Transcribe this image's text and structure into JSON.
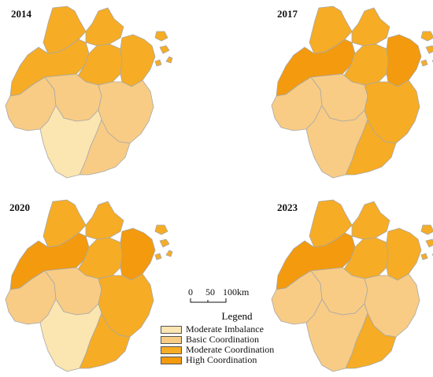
{
  "colors": {
    "moderate_imbalance": "#fbe5b0",
    "basic_coordination": "#f8cc85",
    "moderate_coordination": "#f6ac24",
    "high_coordination": "#f39a0e",
    "border": "#a8a8a8"
  },
  "panels": [
    {
      "year": "2014",
      "regions": {
        "huzhou": "moderate_coordination",
        "jiaxing": "moderate_coordination",
        "hangzhou": "moderate_coordination",
        "shaoxing": "moderate_coordination",
        "ningbo": "moderate_coordination",
        "zhoushan": "moderate_coordination",
        "quzhou": "basic_coordination",
        "jinhua": "basic_coordination",
        "taizhou": "basic_coordination",
        "lishui": "moderate_imbalance",
        "wenzhou": "basic_coordination"
      }
    },
    {
      "year": "2017",
      "regions": {
        "huzhou": "moderate_coordination",
        "jiaxing": "moderate_coordination",
        "hangzhou": "high_coordination",
        "shaoxing": "moderate_coordination",
        "ningbo": "high_coordination",
        "zhoushan": "moderate_coordination",
        "quzhou": "basic_coordination",
        "jinhua": "basic_coordination",
        "taizhou": "moderate_coordination",
        "lishui": "basic_coordination",
        "wenzhou": "moderate_coordination"
      }
    },
    {
      "year": "2020",
      "regions": {
        "huzhou": "moderate_coordination",
        "jiaxing": "moderate_coordination",
        "hangzhou": "high_coordination",
        "shaoxing": "moderate_coordination",
        "ningbo": "high_coordination",
        "zhoushan": "moderate_coordination",
        "quzhou": "basic_coordination",
        "jinhua": "basic_coordination",
        "taizhou": "moderate_coordination",
        "lishui": "moderate_imbalance",
        "wenzhou": "moderate_coordination"
      }
    },
    {
      "year": "2023",
      "regions": {
        "huzhou": "moderate_coordination",
        "jiaxing": "moderate_coordination",
        "hangzhou": "high_coordination",
        "shaoxing": "moderate_coordination",
        "ningbo": "moderate_coordination",
        "zhoushan": "moderate_coordination",
        "quzhou": "basic_coordination",
        "jinhua": "basic_coordination",
        "taizhou": "basic_coordination",
        "lishui": "basic_coordination",
        "wenzhou": "moderate_coordination"
      }
    }
  ],
  "scale": {
    "labels": [
      "0",
      "50",
      "100km"
    ]
  },
  "legend": {
    "title": "Legend",
    "items": [
      {
        "key": "moderate_imbalance",
        "label": "Moderate Imbalance"
      },
      {
        "key": "basic_coordination",
        "label": "Basic Coordination"
      },
      {
        "key": "moderate_coordination",
        "label": "Moderate Coordination"
      },
      {
        "key": "high_coordination",
        "label": "High Coordination"
      }
    ]
  }
}
